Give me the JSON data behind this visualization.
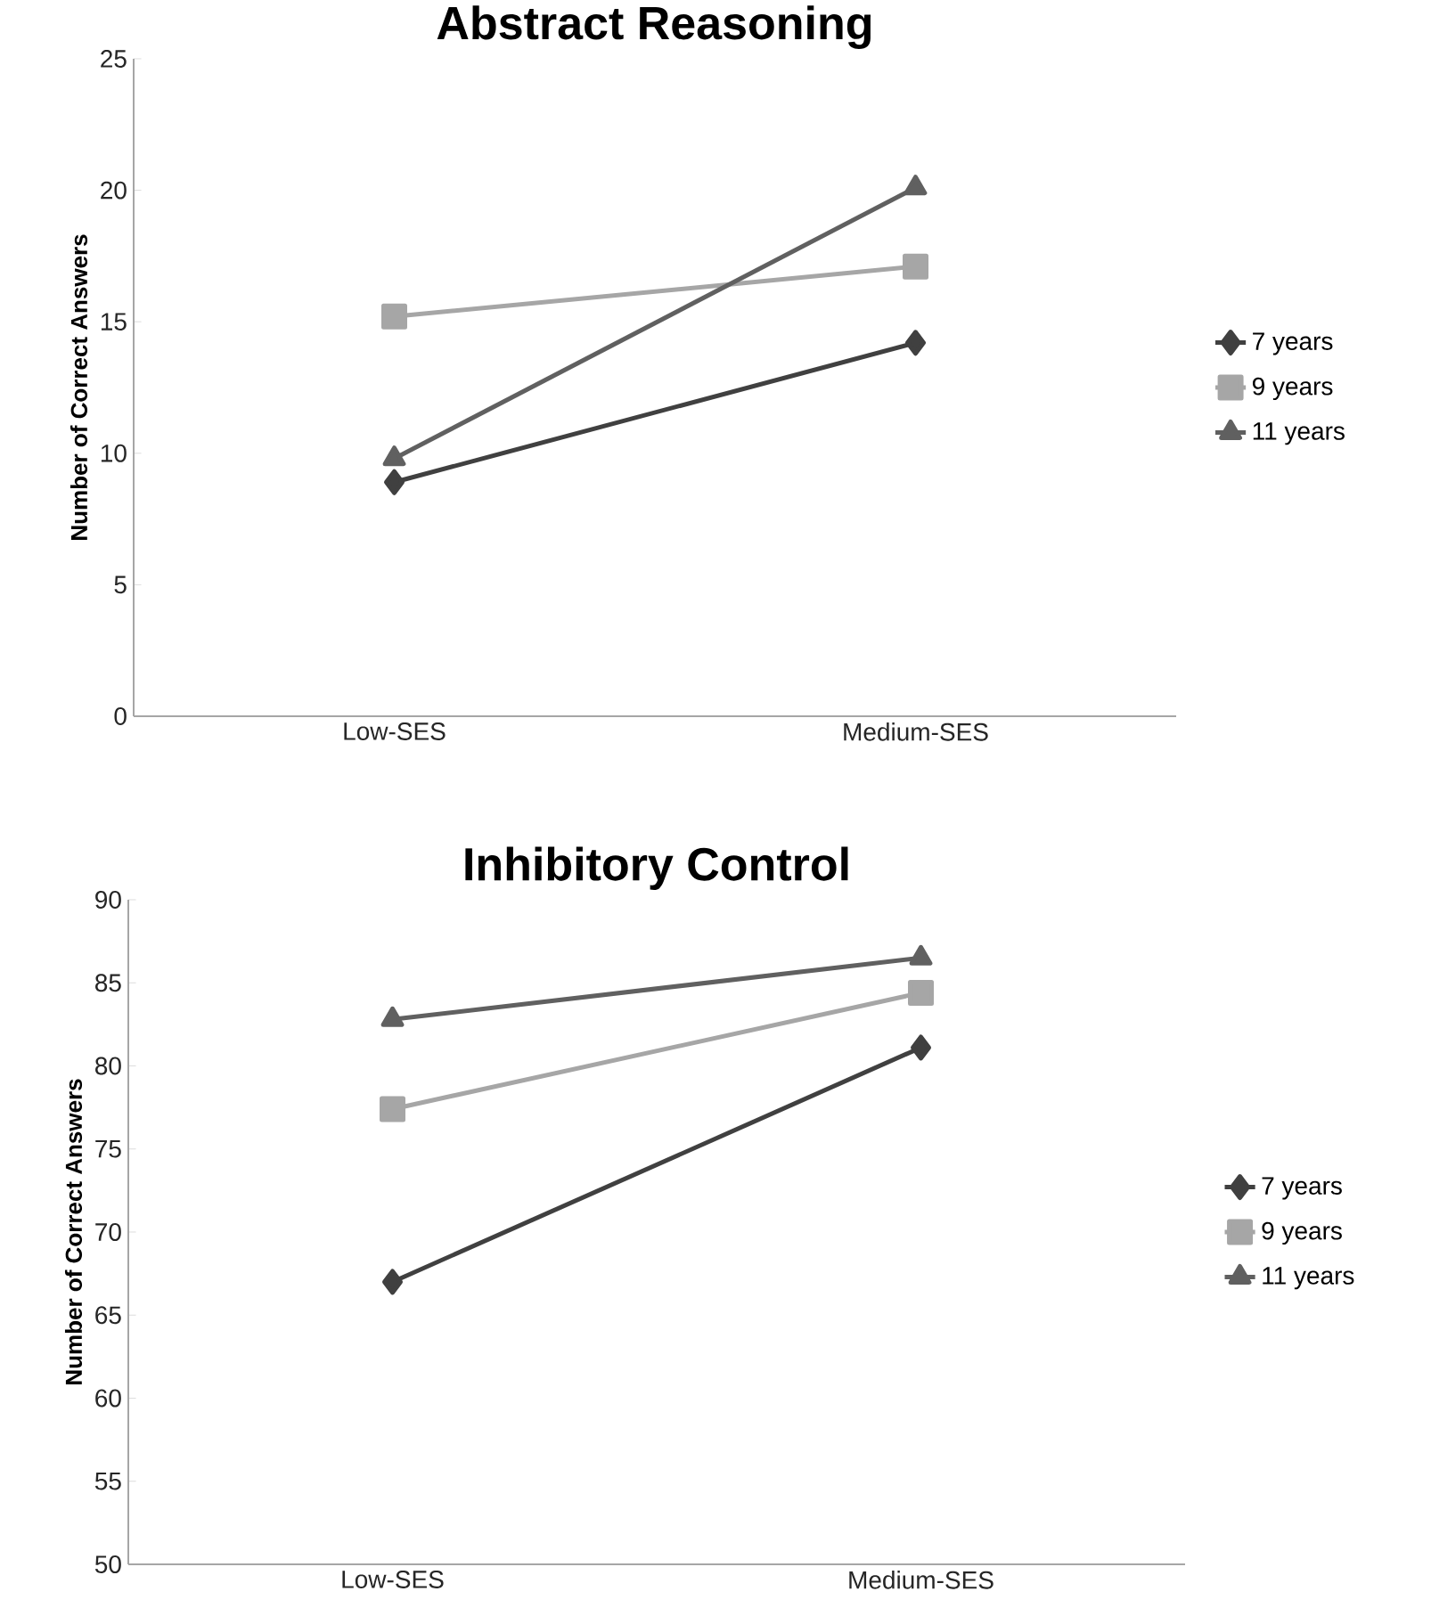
{
  "chart_data": [
    {
      "type": "line",
      "title": "Abstract Reasoning",
      "ylabel": "Number of Correct Answers",
      "categories": [
        "Low-SES",
        "Medium-SES"
      ],
      "ylim": [
        0,
        25
      ],
      "yticks": [
        0,
        5,
        10,
        15,
        20,
        25
      ],
      "grid": false,
      "legend": "right",
      "series": [
        {
          "name": "7 years",
          "color": "#404040",
          "marker": "diamond",
          "values": [
            8.9,
            14.2
          ]
        },
        {
          "name": "9 years",
          "color": "#a6a6a6",
          "marker": "square",
          "values": [
            15.2,
            17.1
          ]
        },
        {
          "name": "11 years",
          "color": "#606060",
          "marker": "triangle",
          "values": [
            9.8,
            20.1
          ]
        }
      ]
    },
    {
      "type": "line",
      "title": "Inhibitory Control",
      "ylabel": "Number of Correct Answers",
      "categories": [
        "Low-SES",
        "Medium-SES"
      ],
      "ylim": [
        50,
        90
      ],
      "yticks": [
        50,
        55,
        60,
        65,
        70,
        75,
        80,
        85,
        90
      ],
      "grid": false,
      "legend": "right",
      "series": [
        {
          "name": "7 years",
          "color": "#404040",
          "marker": "diamond",
          "values": [
            67.0,
            81.1
          ]
        },
        {
          "name": "9 years",
          "color": "#a6a6a6",
          "marker": "square",
          "values": [
            77.4,
            84.4
          ]
        },
        {
          "name": "11 years",
          "color": "#606060",
          "marker": "triangle",
          "values": [
            82.8,
            86.5
          ]
        }
      ]
    }
  ]
}
